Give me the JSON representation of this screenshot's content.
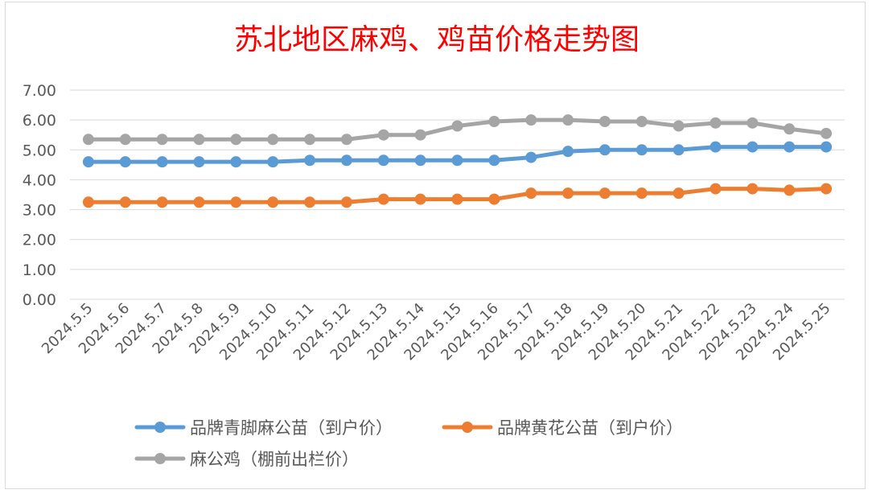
{
  "chart_data": {
    "type": "line",
    "title": "苏北地区麻鸡、鸡苗价格走势图",
    "xlabel": "",
    "ylabel": "",
    "ylim": [
      0,
      7
    ],
    "yticks": [
      "0.00",
      "1.00",
      "2.00",
      "3.00",
      "4.00",
      "5.00",
      "6.00",
      "7.00"
    ],
    "grid": true,
    "legend_position": "bottom",
    "categories": [
      "2024.5.5",
      "2024.5.6",
      "2024.5.7",
      "2024.5.8",
      "2024.5.9",
      "2024.5.10",
      "2024.5.11",
      "2024.5.12",
      "2024.5.13",
      "2024.5.14",
      "2024.5.15",
      "2024.5.16",
      "2024.5.17",
      "2024.5.18",
      "2024.5.19",
      "2024.5.20",
      "2024.5.21",
      "2024.5.22",
      "2024.5.23",
      "2024.5.24",
      "2024.5.25"
    ],
    "series": [
      {
        "name": "品牌青脚麻公苗（到户价）",
        "color": "#5b9bd5",
        "values": [
          4.6,
          4.6,
          4.6,
          4.6,
          4.6,
          4.6,
          4.65,
          4.65,
          4.65,
          4.65,
          4.65,
          4.65,
          4.75,
          4.95,
          5.0,
          5.0,
          5.0,
          5.1,
          5.1,
          5.1,
          5.1
        ]
      },
      {
        "name": "品牌黄花公苗（到户价）",
        "color": "#ed7d31",
        "values": [
          3.25,
          3.25,
          3.25,
          3.25,
          3.25,
          3.25,
          3.25,
          3.25,
          3.35,
          3.35,
          3.35,
          3.35,
          3.55,
          3.55,
          3.55,
          3.55,
          3.55,
          3.7,
          3.7,
          3.65,
          3.7
        ]
      },
      {
        "name": "麻公鸡（棚前出栏价）",
        "color": "#a5a5a5",
        "values": [
          5.35,
          5.35,
          5.35,
          5.35,
          5.35,
          5.35,
          5.35,
          5.35,
          5.5,
          5.5,
          5.8,
          5.95,
          6.0,
          6.0,
          5.95,
          5.95,
          5.8,
          5.9,
          5.9,
          5.7,
          5.55
        ]
      }
    ]
  }
}
